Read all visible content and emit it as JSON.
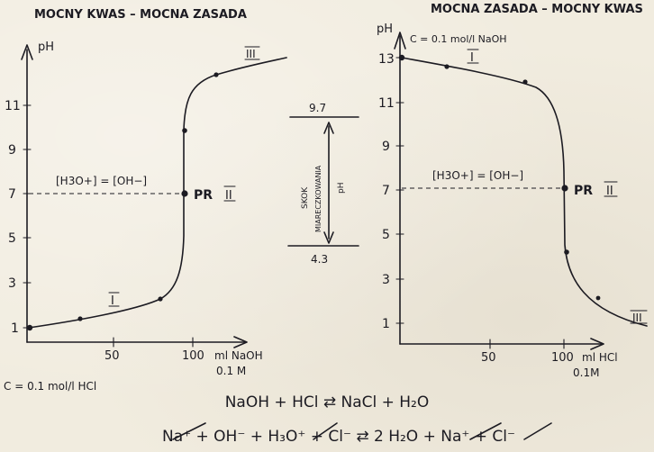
{
  "left_chart": {
    "title": "MOCNY KWAS – MOCNA ZASADA",
    "y_axis_label": "pH",
    "y_ticks": [
      "1",
      "3",
      "5",
      "7",
      "9",
      "11"
    ],
    "x_ticks": [
      "50",
      "100"
    ],
    "x_axis_label": "ml NaOH",
    "x_axis_conc": "0.1 M",
    "concentration_note": "C = 0.1 mol/l HCl",
    "equivalence_label": "[H3O+] = [OH−]",
    "equivalence_point_label": "PR",
    "region_labels": [
      "I",
      "II",
      "III"
    ]
  },
  "right_chart": {
    "title": "MOCNA ZASADA – MOCNY KWAS",
    "y_axis_label": "pH",
    "y_ticks": [
      "1",
      "3",
      "5",
      "7",
      "9",
      "11",
      "13"
    ],
    "x_ticks": [
      "50",
      "100"
    ],
    "x_axis_label": "ml HCl",
    "x_axis_conc": "0.1M",
    "concentration_note": "C = 0.1 mol/l NaOH",
    "equivalence_label": "[H3O+] = [OH−]",
    "equivalence_point_label": "PR",
    "region_labels": [
      "I",
      "II",
      "III"
    ]
  },
  "jump_scale": {
    "upper_value": "9.7",
    "lower_value": "4.3",
    "label_word1": "SKOK",
    "label_word2": "MIARECZKOWANIA",
    "label_unit": "pH"
  },
  "equations": {
    "line1": "NaOH + HCl ⇄ NaCl + H₂O",
    "line2": "Na⁺ + OH⁻ + H₃O⁺ + Cl⁻ ⇄ 2 H₂O + Na⁺ + Cl⁻"
  },
  "chart_data": [
    {
      "type": "line",
      "title": "MOCNY KWAS – MOCNA ZASADA",
      "xlabel": "ml NaOH 0.1 M",
      "ylabel": "pH",
      "xlim": [
        0,
        135
      ],
      "ylim": [
        0,
        13
      ],
      "series": [
        {
          "x": [
            0,
            30,
            75,
            95,
            100,
            100,
            120,
            150
          ],
          "y": [
            1.0,
            1.2,
            2.3,
            4.0,
            7.0,
            9.7,
            11.7,
            12.2
          ]
        }
      ],
      "markers": [
        [
          0,
          1.0
        ],
        [
          30,
          1.3
        ],
        [
          75,
          2.2
        ],
        [
          100,
          7.0
        ],
        [
          100,
          9.7
        ],
        [
          120,
          11.7
        ]
      ],
      "annotations": [
        "[H3O+] = [OH−]",
        "PR",
        "I",
        "II",
        "III"
      ]
    },
    {
      "type": "line",
      "title": "MOCNA ZASADA – MOCNY KWAS",
      "xlabel": "ml HCl 0.1M",
      "ylabel": "pH",
      "xlim": [
        0,
        150
      ],
      "ylim": [
        0,
        13
      ],
      "series": [
        {
          "x": [
            0,
            25,
            70,
            95,
            100,
            100,
            110,
            130,
            150
          ],
          "y": [
            13.0,
            12.8,
            12.2,
            10.5,
            7.0,
            4.3,
            3.0,
            1.8,
            1.2
          ]
        }
      ],
      "markers": [
        [
          0,
          13.0
        ],
        [
          25,
          12.7
        ],
        [
          70,
          12.2
        ],
        [
          100,
          7.0
        ],
        [
          100,
          4.3
        ],
        [
          125,
          2.3
        ]
      ],
      "annotations": [
        "[H3O+] = [OH−]",
        "PR",
        "I",
        "II",
        "III"
      ]
    }
  ]
}
